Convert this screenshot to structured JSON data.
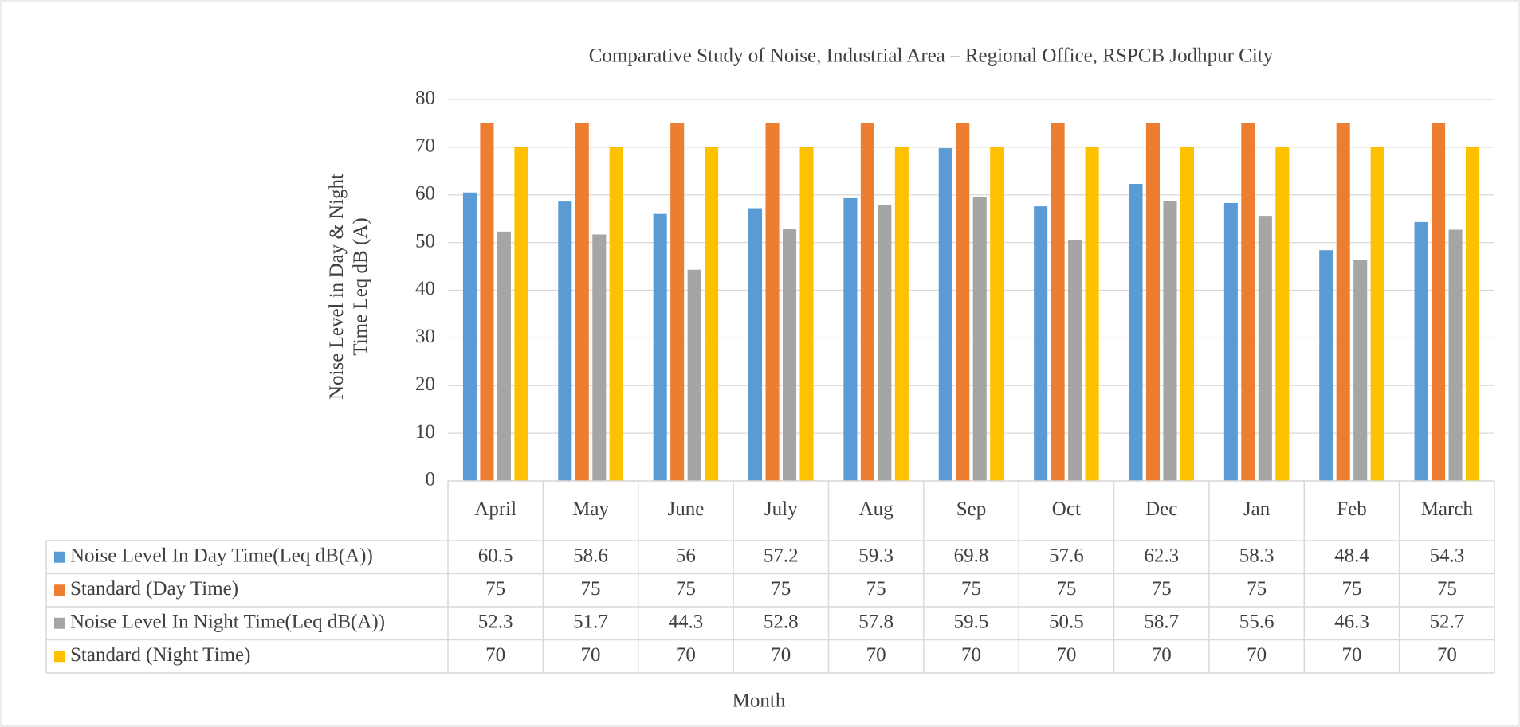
{
  "chart_data": {
    "type": "bar",
    "title": "Comparative Study of Noise, Industrial Area – Regional Office, RSPCB Jodhpur City",
    "x_label": "Month",
    "y_label": "Noise Level in Day & Night Time Leq dB (A)",
    "categories": [
      "April",
      "May",
      "June",
      "July",
      "Aug",
      "Sep",
      "Oct",
      "Dec",
      "Jan",
      "Feb",
      "March"
    ],
    "series": [
      {
        "name": "Noise Level In Day Time(Leq dB(A))",
        "color": "#5b9bd5",
        "values": [
          60.5,
          58.6,
          56,
          57.2,
          59.3,
          69.8,
          57.6,
          62.3,
          58.3,
          48.4,
          54.3
        ]
      },
      {
        "name": "Standard (Day Time)",
        "color": "#ed7d31",
        "values": [
          75,
          75,
          75,
          75,
          75,
          75,
          75,
          75,
          75,
          75,
          75
        ]
      },
      {
        "name": "Noise Level In Night Time(Leq dB(A))",
        "color": "#a5a5a5",
        "values": [
          52.3,
          51.7,
          44.3,
          52.8,
          57.8,
          59.5,
          50.5,
          58.7,
          55.6,
          46.3,
          52.7
        ]
      },
      {
        "name": "Standard (Night Time)",
        "color": "#ffc000",
        "values": [
          70,
          70,
          70,
          70,
          70,
          70,
          70,
          70,
          70,
          70,
          70
        ]
      }
    ],
    "ylim": [
      0,
      80
    ],
    "yticks": [
      0,
      10,
      20,
      30,
      40,
      50,
      60,
      70,
      80
    ],
    "grid": true,
    "data_table": true
  }
}
